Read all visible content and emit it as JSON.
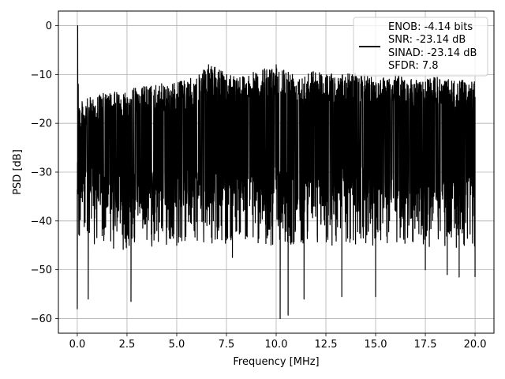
{
  "chart_data": {
    "type": "line",
    "title": "",
    "xlabel": "Frequency [MHz]",
    "ylabel": "PSD [dB]",
    "xlim": [
      -0.95,
      20.95
    ],
    "ylim": [
      -63.0,
      3.0
    ],
    "x_ticks": [
      0.0,
      2.5,
      5.0,
      7.5,
      10.0,
      12.5,
      15.0,
      17.5,
      20.0
    ],
    "x_tick_labels": [
      "0.0",
      "2.5",
      "5.0",
      "7.5",
      "10.0",
      "12.5",
      "15.0",
      "17.5",
      "20.0"
    ],
    "y_ticks": [
      0,
      -10,
      -20,
      -30,
      -40,
      -50,
      -60
    ],
    "y_tick_labels": [
      "0",
      "−10",
      "−20",
      "−30",
      "−40",
      "−50",
      "−60"
    ],
    "grid": true,
    "legend_position": "top-right",
    "legend": [
      "ENOB: -4.14 bits",
      "SNR: -23.14 dB",
      "SINAD: -23.14 dB",
      "SFDR: 7.8"
    ],
    "series": [
      {
        "color": "#000000",
        "x_range": [
          0.0,
          20.0
        ],
        "description": "dense noisy PSD spectrum",
        "points": [
          [
            0.0,
            -58.0
          ],
          [
            0.02,
            0.0
          ],
          [
            0.05,
            -12.0
          ],
          [
            0.1,
            -17.0
          ],
          [
            0.2,
            -20.0
          ],
          [
            0.5,
            -42.0
          ],
          [
            0.55,
            -56.0
          ],
          [
            1.0,
            -35.0
          ],
          [
            2.0,
            -40.0
          ],
          [
            2.7,
            -56.5
          ],
          [
            4.0,
            -42.0
          ],
          [
            5.0,
            -45.0
          ],
          [
            6.6,
            -8.0
          ],
          [
            7.8,
            -47.5
          ],
          [
            8.5,
            -43.0
          ],
          [
            10.0,
            -8.0
          ],
          [
            10.2,
            -60.0
          ],
          [
            10.6,
            -59.3
          ],
          [
            11.4,
            -56.0
          ],
          [
            12.5,
            -35.0
          ],
          [
            13.3,
            -55.5
          ],
          [
            15.0,
            -55.5
          ],
          [
            16.0,
            -10.0
          ],
          [
            17.5,
            -50.0
          ],
          [
            18.6,
            -51.0
          ],
          [
            19.2,
            -51.5
          ],
          [
            20.0,
            -51.5
          ]
        ],
        "upper_envelope": [
          [
            0.2,
            -15.5
          ],
          [
            1.0,
            -14.0
          ],
          [
            2.0,
            -13.5
          ],
          [
            3.0,
            -12.5
          ],
          [
            4.0,
            -12.0
          ],
          [
            5.0,
            -11.5
          ],
          [
            6.0,
            -10.5
          ],
          [
            6.6,
            -8.0
          ],
          [
            7.5,
            -9.5
          ],
          [
            8.5,
            -10.0
          ],
          [
            10.0,
            -8.0
          ],
          [
            11.0,
            -9.5
          ],
          [
            12.0,
            -9.0
          ],
          [
            13.0,
            -10.0
          ],
          [
            14.0,
            -9.5
          ],
          [
            15.0,
            -10.5
          ],
          [
            16.0,
            -10.0
          ],
          [
            17.0,
            -11.0
          ],
          [
            18.0,
            -10.5
          ],
          [
            19.0,
            -11.0
          ],
          [
            20.0,
            -11.5
          ]
        ],
        "lower_envelope": [
          [
            0.2,
            -36.0
          ],
          [
            1.0,
            -37.5
          ],
          [
            2.0,
            -38.0
          ],
          [
            3.0,
            -37.5
          ],
          [
            4.0,
            -37.5
          ],
          [
            5.0,
            -37.0
          ],
          [
            6.0,
            -37.5
          ],
          [
            7.0,
            -37.0
          ],
          [
            8.0,
            -37.0
          ],
          [
            9.0,
            -37.0
          ],
          [
            10.0,
            -37.0
          ],
          [
            11.0,
            -37.0
          ],
          [
            12.0,
            -37.0
          ],
          [
            13.0,
            -37.0
          ],
          [
            14.0,
            -37.0
          ],
          [
            15.0,
            -37.0
          ],
          [
            16.0,
            -37.0
          ],
          [
            17.0,
            -37.0
          ],
          [
            18.0,
            -37.5
          ],
          [
            19.0,
            -37.5
          ],
          [
            20.0,
            -37.5
          ]
        ]
      }
    ]
  }
}
